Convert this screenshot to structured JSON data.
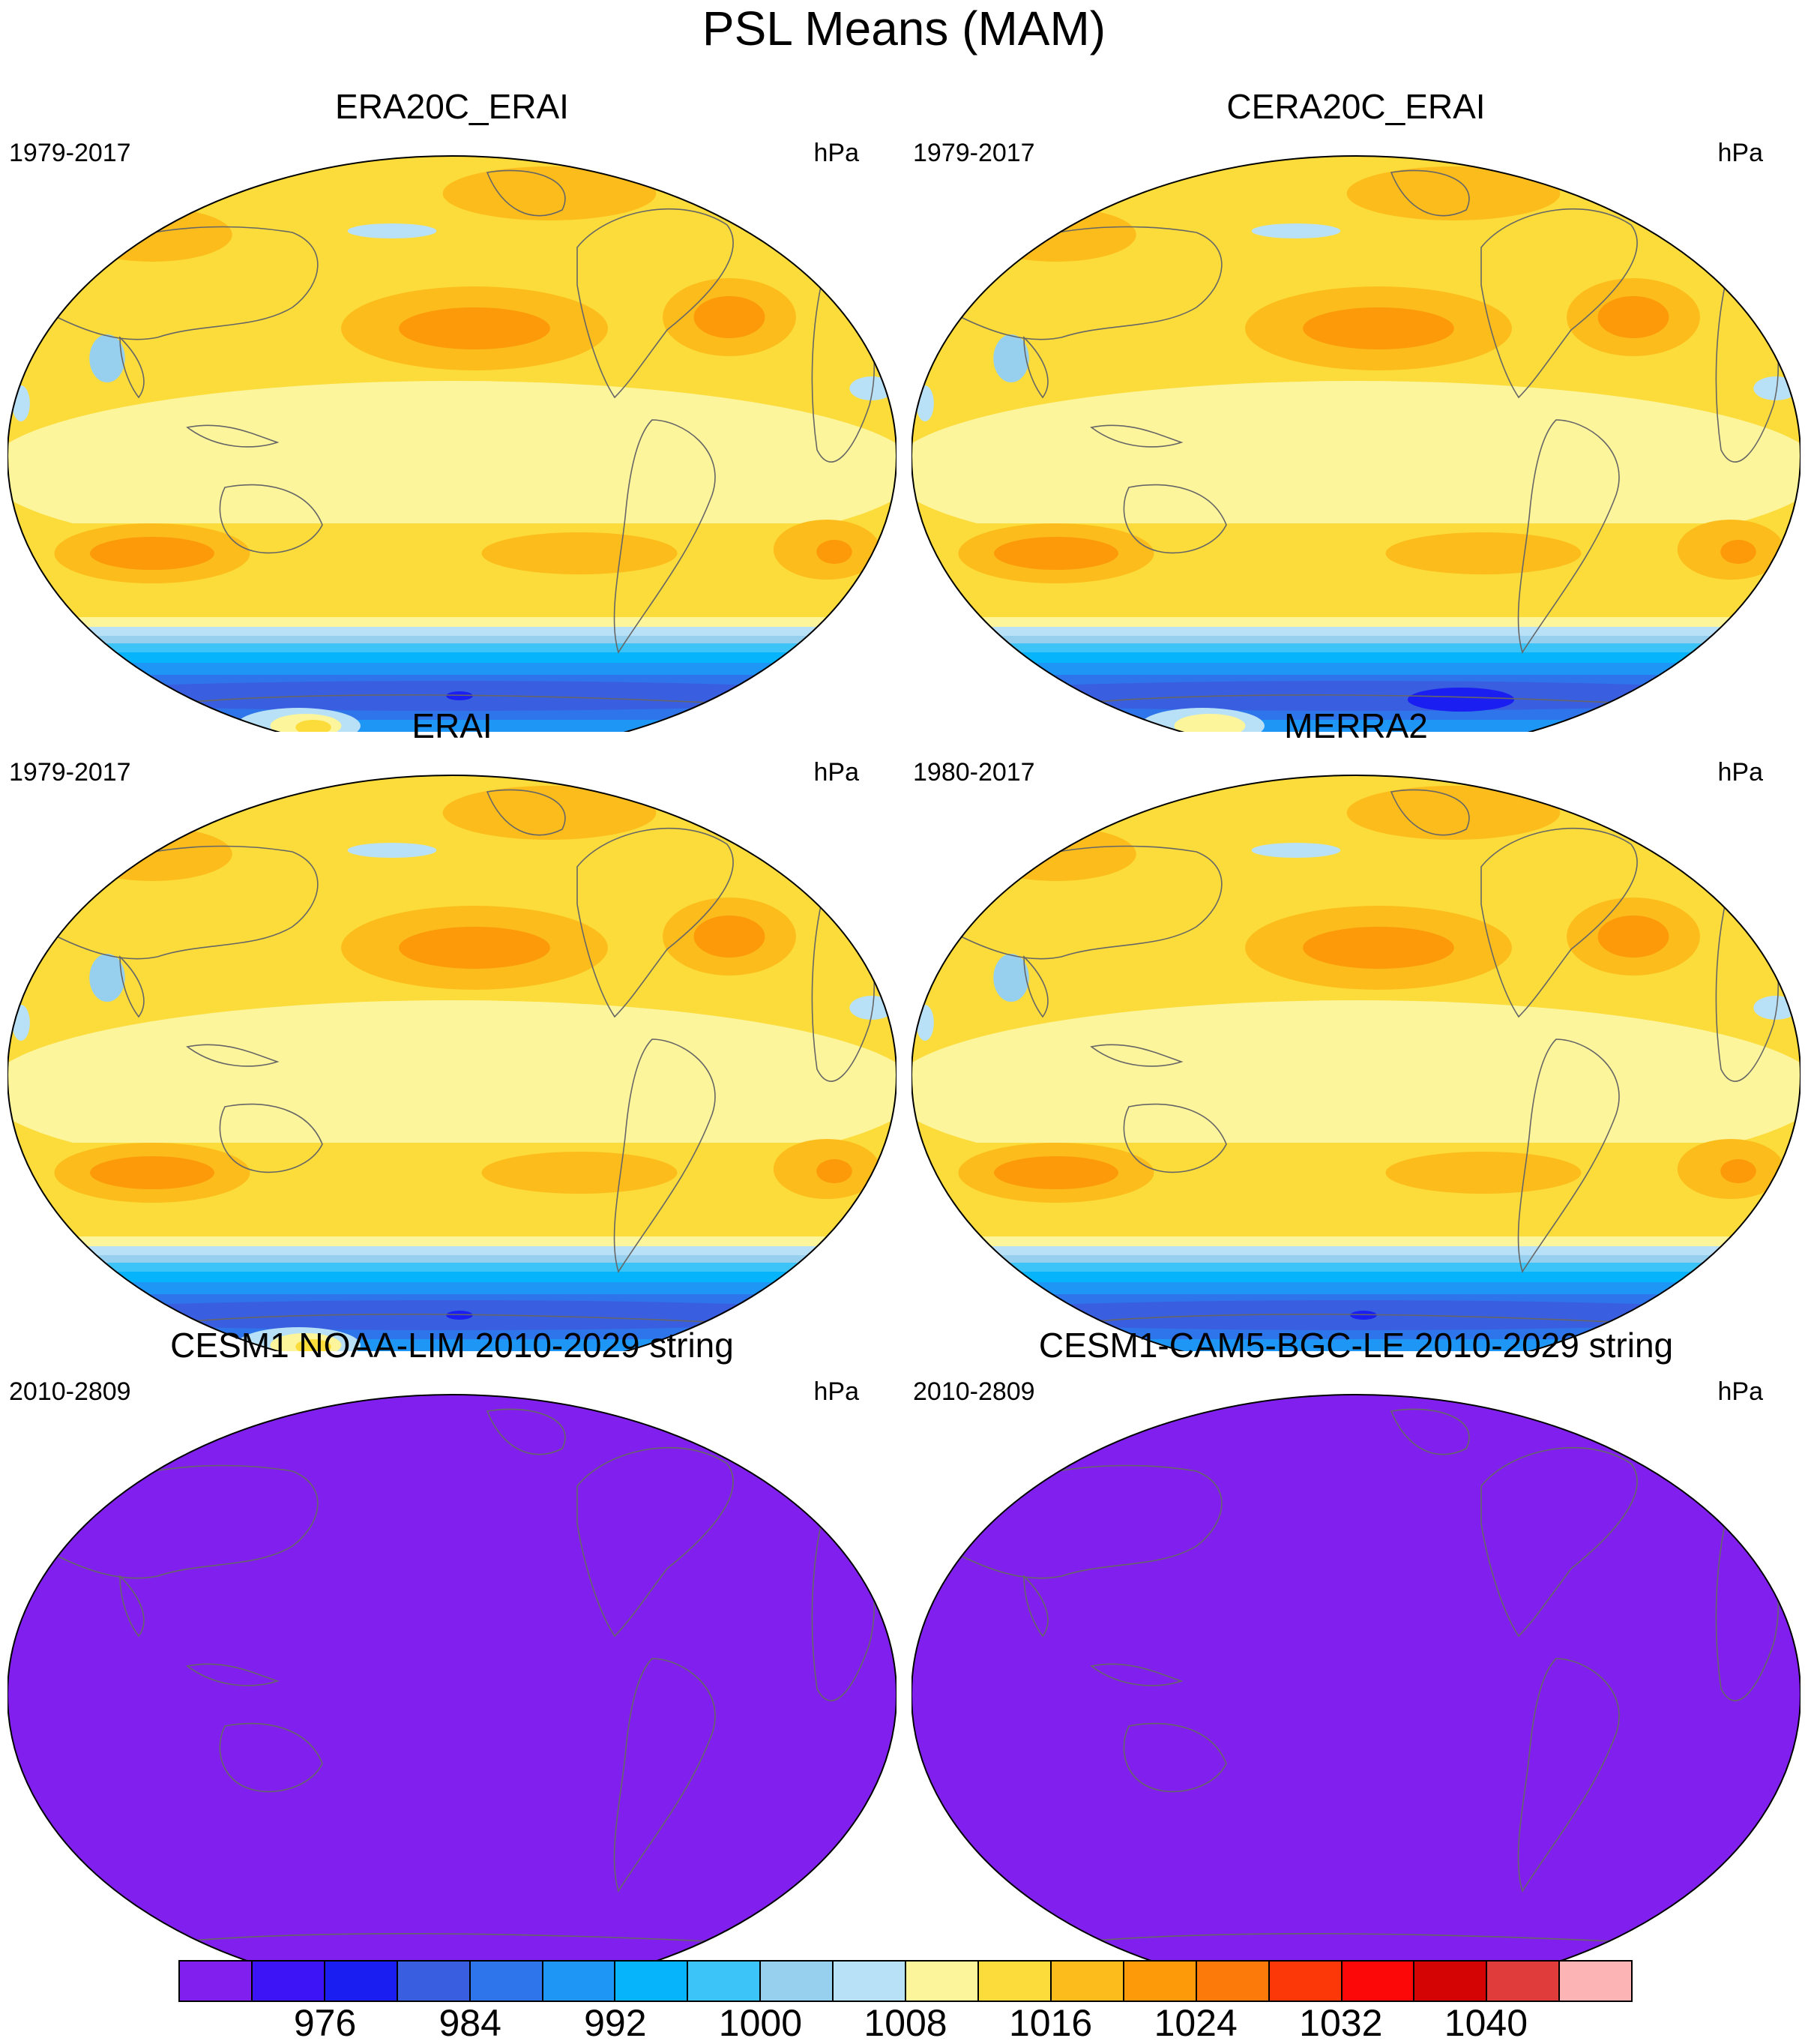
{
  "title": "PSL Means (MAM)",
  "panels": [
    {
      "title": "ERA20C_ERAI",
      "years": "1979-2017",
      "units": "hPa",
      "field": "reanalysis",
      "variant": "a"
    },
    {
      "title": "CERA20C_ERAI",
      "years": "1979-2017",
      "units": "hPa",
      "field": "reanalysis",
      "variant": "b"
    },
    {
      "title": "ERAI",
      "years": "1979-2017",
      "units": "hPa",
      "field": "reanalysis",
      "variant": "a"
    },
    {
      "title": "MERRA2",
      "years": "1980-2017",
      "units": "hPa",
      "field": "reanalysis",
      "variant": "c"
    },
    {
      "title": "CESM1 NOAA-LIM 2010-2029 string",
      "years": "2010-2809",
      "units": "hPa",
      "field": "uniform",
      "variant": "u"
    },
    {
      "title": "CESM1-CAM5-BGC-LE 2010-2029 string",
      "years": "2010-2809",
      "units": "hPa",
      "field": "uniform",
      "variant": "u"
    }
  ],
  "colorbar": {
    "colors": [
      "#8120ee",
      "#3c14f5",
      "#1a1ef0",
      "#3a5ee0",
      "#2e74ea",
      "#1e96f5",
      "#06b4fc",
      "#3cc4f8",
      "#96d0ee",
      "#b8e0f6",
      "#fdf59c",
      "#fcdc3a",
      "#fcbc1c",
      "#fc9a0a",
      "#fc7a0a",
      "#fc3808",
      "#fc0808",
      "#d40404",
      "#e03c3c",
      "#fcb4b4"
    ],
    "labels": [
      "976",
      "984",
      "992",
      "1000",
      "1008",
      "1016",
      "1024",
      "1032",
      "1040"
    ]
  },
  "chart_data": {
    "type": "heatmap",
    "variable": "PSL",
    "season": "MAM",
    "units": "hPa",
    "levels": [
      972,
      976,
      980,
      984,
      988,
      992,
      996,
      1000,
      1004,
      1008,
      1012,
      1016,
      1020,
      1024,
      1028,
      1032,
      1036,
      1040,
      1044
    ],
    "uniform_panel_value": "below 972"
  }
}
